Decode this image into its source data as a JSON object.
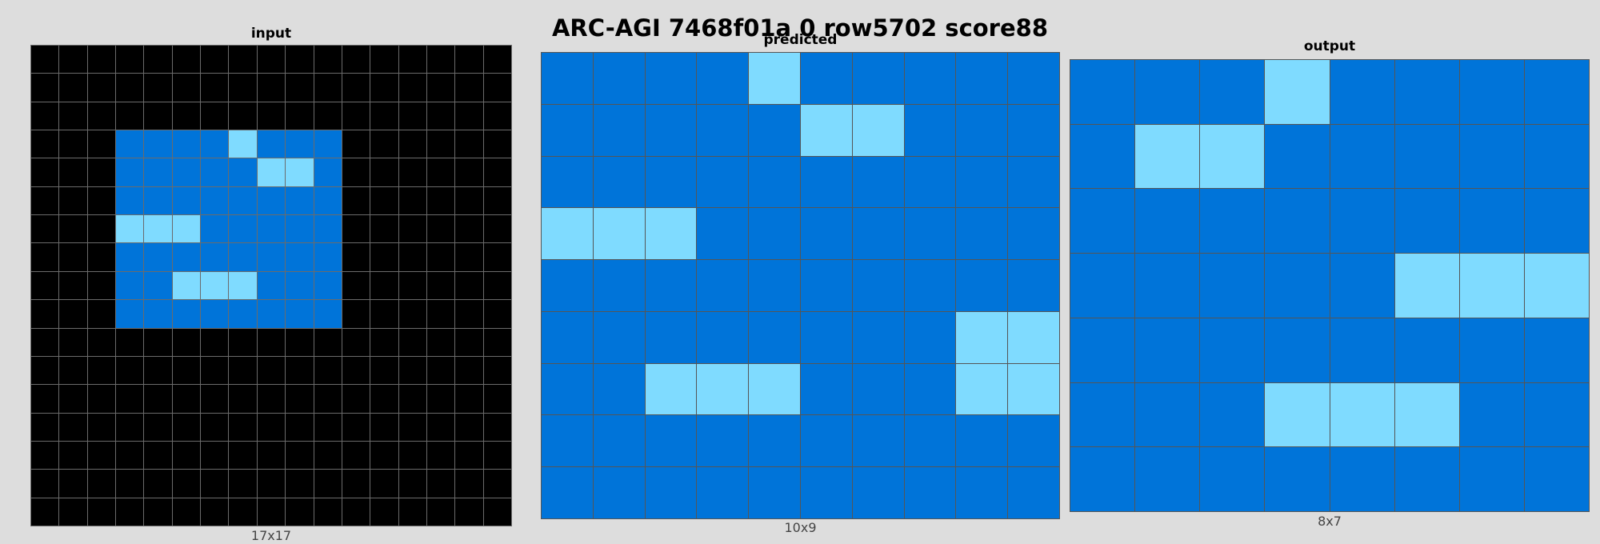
{
  "title": "ARC-AGI 7468f01a 0 row5702 score88",
  "palette": {
    "0": "#000000",
    "1": "#0074d9",
    "8": "#7fdbff"
  },
  "panels": [
    {
      "id": "input",
      "label": "input",
      "dims": "17x17",
      "rows": 17,
      "cols": 17,
      "grid": [
        [
          0,
          0,
          0,
          0,
          0,
          0,
          0,
          0,
          0,
          0,
          0,
          0,
          0,
          0,
          0,
          0,
          0
        ],
        [
          0,
          0,
          0,
          0,
          0,
          0,
          0,
          0,
          0,
          0,
          0,
          0,
          0,
          0,
          0,
          0,
          0
        ],
        [
          0,
          0,
          0,
          0,
          0,
          0,
          0,
          0,
          0,
          0,
          0,
          0,
          0,
          0,
          0,
          0,
          0
        ],
        [
          0,
          0,
          0,
          1,
          1,
          1,
          1,
          8,
          1,
          1,
          1,
          0,
          0,
          0,
          0,
          0,
          0
        ],
        [
          0,
          0,
          0,
          1,
          1,
          1,
          1,
          1,
          8,
          8,
          1,
          0,
          0,
          0,
          0,
          0,
          0
        ],
        [
          0,
          0,
          0,
          1,
          1,
          1,
          1,
          1,
          1,
          1,
          1,
          0,
          0,
          0,
          0,
          0,
          0
        ],
        [
          0,
          0,
          0,
          8,
          8,
          8,
          1,
          1,
          1,
          1,
          1,
          0,
          0,
          0,
          0,
          0,
          0
        ],
        [
          0,
          0,
          0,
          1,
          1,
          1,
          1,
          1,
          1,
          1,
          1,
          0,
          0,
          0,
          0,
          0,
          0
        ],
        [
          0,
          0,
          0,
          1,
          1,
          8,
          8,
          8,
          1,
          1,
          1,
          0,
          0,
          0,
          0,
          0,
          0
        ],
        [
          0,
          0,
          0,
          1,
          1,
          1,
          1,
          1,
          1,
          1,
          1,
          0,
          0,
          0,
          0,
          0,
          0
        ],
        [
          0,
          0,
          0,
          0,
          0,
          0,
          0,
          0,
          0,
          0,
          0,
          0,
          0,
          0,
          0,
          0,
          0
        ],
        [
          0,
          0,
          0,
          0,
          0,
          0,
          0,
          0,
          0,
          0,
          0,
          0,
          0,
          0,
          0,
          0,
          0
        ],
        [
          0,
          0,
          0,
          0,
          0,
          0,
          0,
          0,
          0,
          0,
          0,
          0,
          0,
          0,
          0,
          0,
          0
        ],
        [
          0,
          0,
          0,
          0,
          0,
          0,
          0,
          0,
          0,
          0,
          0,
          0,
          0,
          0,
          0,
          0,
          0
        ],
        [
          0,
          0,
          0,
          0,
          0,
          0,
          0,
          0,
          0,
          0,
          0,
          0,
          0,
          0,
          0,
          0,
          0
        ],
        [
          0,
          0,
          0,
          0,
          0,
          0,
          0,
          0,
          0,
          0,
          0,
          0,
          0,
          0,
          0,
          0,
          0
        ],
        [
          0,
          0,
          0,
          0,
          0,
          0,
          0,
          0,
          0,
          0,
          0,
          0,
          0,
          0,
          0,
          0,
          0
        ]
      ]
    },
    {
      "id": "predicted",
      "label": "predicted",
      "dims": "10x9",
      "rows": 9,
      "cols": 10,
      "grid": [
        [
          1,
          1,
          1,
          1,
          8,
          1,
          1,
          1,
          1,
          1
        ],
        [
          1,
          1,
          1,
          1,
          1,
          8,
          8,
          1,
          1,
          1
        ],
        [
          1,
          1,
          1,
          1,
          1,
          1,
          1,
          1,
          1,
          1
        ],
        [
          8,
          8,
          8,
          1,
          1,
          1,
          1,
          1,
          1,
          1
        ],
        [
          1,
          1,
          1,
          1,
          1,
          1,
          1,
          1,
          1,
          1
        ],
        [
          1,
          1,
          1,
          1,
          1,
          1,
          1,
          1,
          8,
          8
        ],
        [
          1,
          1,
          8,
          8,
          8,
          1,
          1,
          1,
          8,
          8
        ],
        [
          1,
          1,
          1,
          1,
          1,
          1,
          1,
          1,
          1,
          1
        ],
        [
          1,
          1,
          1,
          1,
          1,
          1,
          1,
          1,
          1,
          1
        ]
      ]
    },
    {
      "id": "output",
      "label": "output",
      "dims": "8x7",
      "rows": 7,
      "cols": 8,
      "grid": [
        [
          1,
          1,
          1,
          8,
          1,
          1,
          1,
          1
        ],
        [
          1,
          8,
          8,
          1,
          1,
          1,
          1,
          1
        ],
        [
          1,
          1,
          1,
          1,
          1,
          1,
          1,
          1
        ],
        [
          1,
          1,
          1,
          1,
          1,
          8,
          8,
          8
        ],
        [
          1,
          1,
          1,
          1,
          1,
          1,
          1,
          1
        ],
        [
          1,
          1,
          1,
          8,
          8,
          8,
          1,
          1
        ],
        [
          1,
          1,
          1,
          1,
          1,
          1,
          1,
          1
        ]
      ]
    }
  ]
}
